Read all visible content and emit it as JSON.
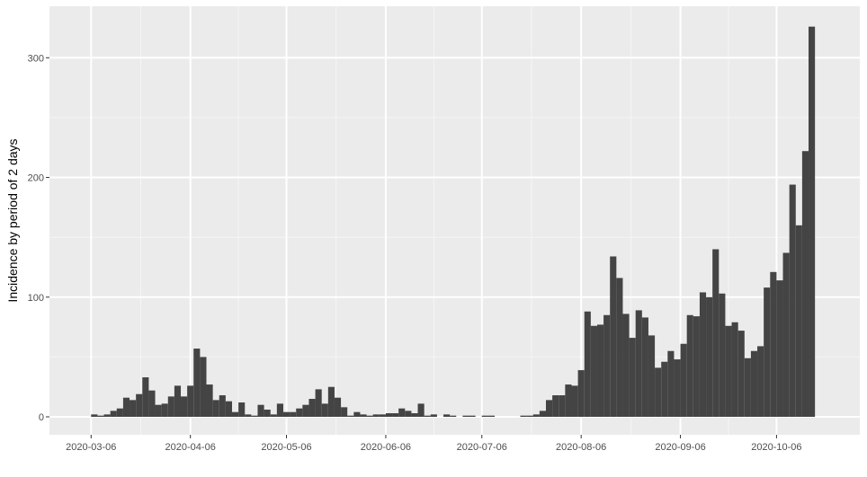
{
  "chart_data": {
    "type": "bar",
    "title": "",
    "xlabel": "",
    "ylabel": "Incidence by period of 2 days",
    "bin_days": 2,
    "x_start": "2020-03-06",
    "x_ticks": [
      "2020-03-06",
      "2020-04-06",
      "2020-05-06",
      "2020-06-06",
      "2020-07-06",
      "2020-08-06",
      "2020-09-06",
      "2020-10-06"
    ],
    "y_ticks": [
      0,
      100,
      200,
      300
    ],
    "xlim": [
      "2020-02-22",
      "2020-11-01"
    ],
    "ylim": [
      -15,
      343
    ],
    "grid": true,
    "legend": "none",
    "values": [
      2,
      1,
      2,
      5,
      7,
      16,
      14,
      19,
      33,
      22,
      10,
      11,
      17,
      26,
      17,
      26,
      57,
      50,
      27,
      14,
      18,
      13,
      4,
      12,
      2,
      1,
      10,
      6,
      2,
      11,
      4,
      4,
      7,
      10,
      15,
      23,
      11,
      25,
      16,
      8,
      1,
      4,
      2,
      1,
      2,
      2,
      3,
      3,
      7,
      5,
      3,
      11,
      1,
      2,
      0,
      2,
      1,
      0,
      1,
      1,
      0,
      1,
      1,
      0,
      0,
      0,
      0,
      1,
      1,
      2,
      5,
      14,
      18,
      18,
      27,
      26,
      39,
      88,
      76,
      77,
      85,
      134,
      116,
      86,
      66,
      89,
      83,
      68,
      41,
      46,
      55,
      48,
      61,
      85,
      84,
      104,
      100,
      140,
      103,
      76,
      79,
      72,
      49,
      55,
      59,
      108,
      121,
      114,
      137,
      194,
      160,
      222,
      326
    ]
  },
  "colors": {
    "panel_background": "#ebebeb",
    "grid_major": "#ffffff",
    "grid_minor": "#f5f5f5",
    "bar_fill": "#404040",
    "tick_color": "#333333",
    "tick_label_color": "#4d4d4d"
  }
}
